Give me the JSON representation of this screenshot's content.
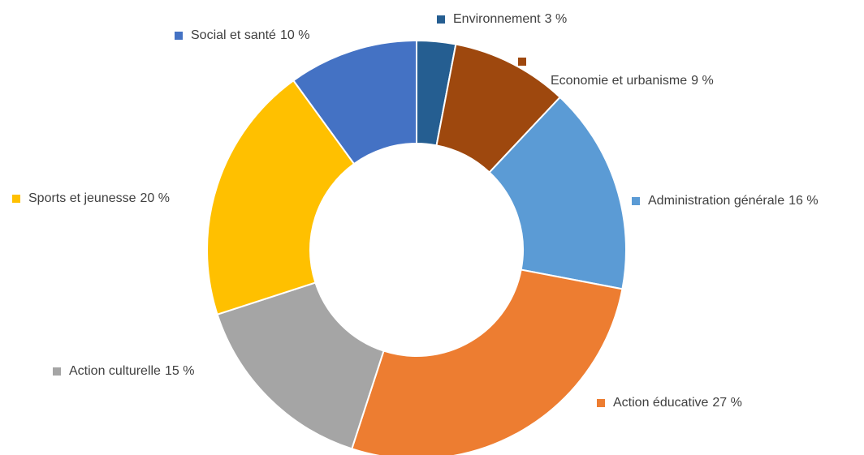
{
  "chart_data": {
    "type": "donut",
    "categories": [
      "Environnement",
      "Economie et urbanisme",
      "Administration générale",
      "Action éducative",
      "Action culturelle",
      "Sports et jeunesse",
      "Social et santé"
    ],
    "values": [
      3,
      9,
      16,
      27,
      15,
      20,
      10
    ],
    "value_labels": [
      "3 %",
      "9 %",
      "16 %",
      "27 %",
      "15 %",
      "20 %",
      "10 %"
    ],
    "colors": [
      "#255e91",
      "#9e480e",
      "#5b9bd5",
      "#ed7d31",
      "#a5a5a5",
      "#ffc000",
      "#4472c4"
    ]
  }
}
